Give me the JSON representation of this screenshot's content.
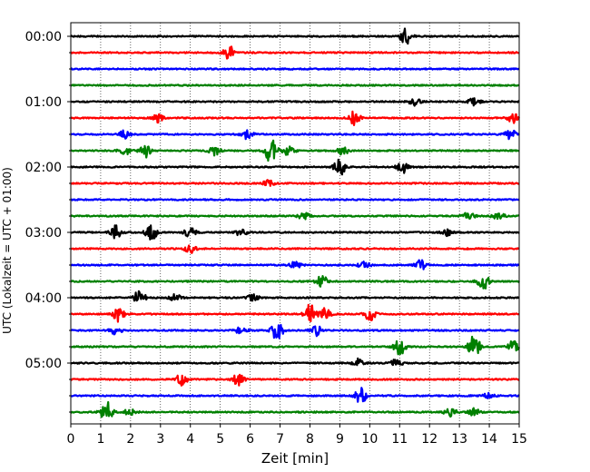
{
  "chart_data": {
    "type": "line",
    "title": "",
    "xlabel": "Zeit  [min]",
    "ylabel": "UTC (Lokalzeit = UTC + 01:00)",
    "xlim": [
      0,
      15
    ],
    "x_ticks": [
      0,
      1,
      2,
      3,
      4,
      5,
      6,
      7,
      8,
      9,
      10,
      11,
      12,
      13,
      14,
      15
    ],
    "x_tick_labels": [
      "0",
      "1",
      "2",
      "3",
      "4",
      "5",
      "6",
      "7",
      "8",
      "9",
      "10",
      "11",
      "12",
      "13",
      "14",
      "15"
    ],
    "y_tick_labels": [
      "00:00",
      "01:00",
      "02:00",
      "03:00",
      "04:00",
      "05:00"
    ],
    "minutes_per_trace": 15,
    "grid": "vertical dotted",
    "colors": [
      "#000000",
      "#ff0000",
      "#0000ff",
      "#008000"
    ],
    "traces": [
      {
        "start": "00:00",
        "color": "#000000",
        "events": [
          [
            11.2,
            1.0
          ]
        ]
      },
      {
        "start": "00:15",
        "color": "#ff0000",
        "events": [
          [
            5.3,
            0.8
          ]
        ]
      },
      {
        "start": "00:30",
        "color": "#0000ff",
        "events": []
      },
      {
        "start": "00:45",
        "color": "#008000",
        "events": []
      },
      {
        "start": "01:00",
        "color": "#000000",
        "events": [
          [
            11.5,
            0.5
          ],
          [
            13.5,
            0.5
          ]
        ]
      },
      {
        "start": "01:15",
        "color": "#ff0000",
        "events": [
          [
            2.9,
            0.5
          ],
          [
            9.5,
            0.9
          ],
          [
            14.8,
            0.6
          ]
        ]
      },
      {
        "start": "01:30",
        "color": "#0000ff",
        "events": [
          [
            1.8,
            0.5
          ],
          [
            5.9,
            0.6
          ],
          [
            14.7,
            0.6
          ]
        ]
      },
      {
        "start": "01:45",
        "color": "#008000",
        "events": [
          [
            1.8,
            0.5
          ],
          [
            2.5,
            0.8
          ],
          [
            4.8,
            0.6
          ],
          [
            6.7,
            1.6
          ],
          [
            7.3,
            0.6
          ],
          [
            9.1,
            0.5
          ]
        ]
      },
      {
        "start": "02:00",
        "color": "#000000",
        "events": [
          [
            9.0,
            1.0
          ],
          [
            11.1,
            0.8
          ]
        ]
      },
      {
        "start": "02:15",
        "color": "#ff0000",
        "events": [
          [
            6.6,
            0.4
          ]
        ]
      },
      {
        "start": "02:30",
        "color": "#0000ff",
        "events": []
      },
      {
        "start": "02:45",
        "color": "#008000",
        "events": [
          [
            7.8,
            0.4
          ],
          [
            13.3,
            0.5
          ],
          [
            14.3,
            0.5
          ]
        ]
      },
      {
        "start": "03:00",
        "color": "#000000",
        "events": [
          [
            1.5,
            0.8
          ],
          [
            2.7,
            1.0
          ],
          [
            4.0,
            0.6
          ],
          [
            5.7,
            0.5
          ],
          [
            12.6,
            0.4
          ]
        ]
      },
      {
        "start": "03:15",
        "color": "#ff0000",
        "events": [
          [
            4.0,
            0.5
          ]
        ]
      },
      {
        "start": "03:30",
        "color": "#0000ff",
        "events": [
          [
            7.5,
            0.4
          ],
          [
            9.8,
            0.5
          ],
          [
            11.7,
            0.6
          ]
        ]
      },
      {
        "start": "03:45",
        "color": "#008000",
        "events": [
          [
            8.4,
            0.7
          ],
          [
            13.8,
            1.0
          ]
        ]
      },
      {
        "start": "04:00",
        "color": "#000000",
        "events": [
          [
            2.3,
            0.9
          ],
          [
            3.5,
            0.4
          ],
          [
            6.1,
            0.4
          ]
        ]
      },
      {
        "start": "04:15",
        "color": "#ff0000",
        "events": [
          [
            1.6,
            0.9
          ],
          [
            8.0,
            1.2
          ],
          [
            8.5,
            0.7
          ],
          [
            10.0,
            0.8
          ]
        ]
      },
      {
        "start": "04:30",
        "color": "#0000ff",
        "events": [
          [
            1.5,
            0.5
          ],
          [
            5.7,
            0.5
          ],
          [
            6.9,
            1.2
          ],
          [
            8.2,
            0.7
          ]
        ]
      },
      {
        "start": "04:45",
        "color": "#008000",
        "events": [
          [
            11.0,
            1.0
          ],
          [
            13.5,
            1.5
          ],
          [
            14.8,
            0.7
          ]
        ]
      },
      {
        "start": "05:00",
        "color": "#000000",
        "events": [
          [
            9.6,
            0.5
          ],
          [
            10.9,
            0.5
          ]
        ]
      },
      {
        "start": "05:15",
        "color": "#ff0000",
        "events": [
          [
            3.7,
            0.8
          ],
          [
            5.6,
            0.7
          ]
        ]
      },
      {
        "start": "05:30",
        "color": "#0000ff",
        "events": [
          [
            9.7,
            1.0
          ],
          [
            14.0,
            0.4
          ]
        ]
      },
      {
        "start": "05:45",
        "color": "#008000",
        "events": [
          [
            1.2,
            1.4
          ],
          [
            2.0,
            0.5
          ],
          [
            12.7,
            0.6
          ],
          [
            13.5,
            0.5
          ]
        ]
      }
    ]
  }
}
